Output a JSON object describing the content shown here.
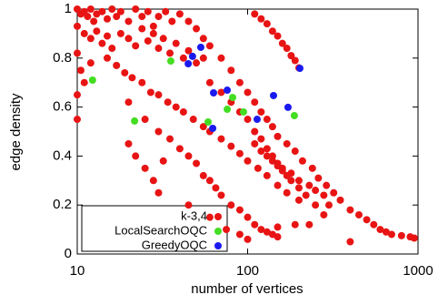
{
  "chart_data": {
    "type": "scatter",
    "xlabel": "number of vertices",
    "ylabel": "edge density",
    "log_x": true,
    "xlim": [
      10,
      1000
    ],
    "ylim": [
      0,
      1
    ],
    "xticks": [
      10,
      100,
      1000
    ],
    "yticks": [
      0,
      0.2,
      0.4,
      0.6,
      0.8,
      1
    ],
    "legend": "lower left",
    "series": [
      {
        "name": "k-3,4",
        "color": "#e81414",
        "x": [
          110,
          120,
          130,
          140,
          150,
          160,
          170,
          180,
          190,
          200,
          10,
          10.5,
          11,
          11.5,
          12,
          12.5,
          13,
          14,
          15,
          16,
          17,
          18,
          20,
          22,
          24,
          26,
          28,
          30,
          33,
          36,
          40,
          10,
          11,
          12,
          13,
          14,
          15,
          16,
          18,
          20,
          22,
          24,
          26,
          28,
          30,
          32,
          35,
          38,
          42,
          45,
          50,
          55,
          10,
          10,
          10.5,
          11,
          10,
          12,
          15,
          17,
          19,
          21,
          24,
          27,
          30,
          34,
          38,
          42,
          48,
          55,
          60,
          70,
          80,
          90,
          100,
          115,
          130,
          150,
          170,
          200,
          20,
          25,
          30,
          35,
          40,
          45,
          50,
          55,
          60,
          65,
          70,
          80,
          90,
          100,
          110,
          120,
          130,
          140,
          150,
          20,
          22,
          25,
          28,
          30,
          32,
          45,
          60,
          75,
          90,
          100,
          150,
          190,
          230,
          45,
          50,
          55,
          60,
          70,
          80,
          90,
          100,
          110,
          120,
          130,
          140,
          150,
          170,
          190,
          210,
          240,
          260,
          290,
          320,
          350,
          400,
          450,
          500,
          550,
          600,
          650,
          700,
          800,
          900,
          950,
          400,
          60,
          70,
          80,
          90,
          100,
          110,
          120,
          130,
          140,
          150,
          160,
          170,
          180,
          200,
          220,
          250,
          280,
          110,
          120,
          130,
          140,
          150,
          160,
          180,
          200,
          230,
          250,
          280,
          300
        ],
        "values": [
          0.98,
          0.96,
          0.94,
          0.91,
          0.89,
          0.86,
          0.84,
          0.81,
          0.79,
          0.76,
          1,
          0.98,
          0.99,
          0.97,
          1,
          0.95,
          0.98,
          0.99,
          0.96,
          1,
          0.97,
          0.99,
          0.95,
          1,
          0.97,
          0.99,
          0.93,
          0.97,
          0.99,
          0.95,
          0.98,
          0.93,
          0.9,
          0.88,
          0.91,
          0.86,
          0.89,
          0.84,
          0.9,
          0.88,
          0.85,
          0.92,
          0.87,
          0.9,
          0.84,
          0.88,
          0.82,
          0.86,
          0.8,
          0.83,
          0.78,
          0.8,
          0.55,
          0.65,
          0.75,
          0.7,
          0.82,
          0.78,
          0.8,
          0.77,
          0.74,
          0.72,
          0.7,
          0.66,
          0.65,
          0.62,
          0.6,
          0.58,
          0.55,
          0.52,
          0.5,
          0.47,
          0.44,
          0.41,
          0.38,
          0.35,
          0.32,
          0.28,
          0.25,
          0.22,
          0.62,
          0.55,
          0.5,
          0.47,
          0.43,
          0.4,
          0.37,
          0.32,
          0.3,
          0.27,
          0.24,
          0.2,
          0.18,
          0.15,
          0.12,
          0.1,
          0.09,
          0.08,
          0.07,
          0.45,
          0.4,
          0.35,
          0.3,
          0.25,
          0.38,
          0.2,
          0.15,
          0.1,
          0.08,
          0.06,
          0.11,
          0.12,
          0.12,
          0.95,
          0.92,
          0.88,
          0.85,
          0.8,
          0.75,
          0.7,
          0.66,
          0.62,
          0.58,
          0.55,
          0.52,
          0.48,
          0.45,
          0.42,
          0.38,
          0.35,
          0.31,
          0.28,
          0.25,
          0.22,
          0.18,
          0.16,
          0.14,
          0.12,
          0.1,
          0.09,
          0.08,
          0.075,
          0.07,
          0.065,
          0.05,
          0.7,
          0.66,
          0.62,
          0.58,
          0.55,
          0.5,
          0.47,
          0.43,
          0.4,
          0.37,
          0.35,
          0.32,
          0.3,
          0.27,
          0.24,
          0.2,
          0.16,
          0.45,
          0.42,
          0.4,
          0.38,
          0.36,
          0.34,
          0.33,
          0.3,
          0.28,
          0.26,
          0.24,
          0.2
        ]
      },
      {
        "name": "LocalSearchOQC",
        "color": "#44dd22",
        "x": [
          12.3,
          21.7,
          35.4,
          58.6,
          75.9,
          81.7,
          94.6,
          188
        ],
        "values": [
          0.71,
          0.543,
          0.788,
          0.539,
          0.591,
          0.639,
          0.58,
          0.565
        ]
      },
      {
        "name": "GreedyOQC",
        "color": "#1a1aee",
        "x": [
          53.1,
          44.8,
          47.5,
          63.1,
          75.9,
          62.4,
          113.7,
          141.9,
          172.6,
          202.6
        ],
        "values": [
          0.844,
          0.777,
          0.807,
          0.658,
          0.669,
          0.513,
          0.55,
          0.647,
          0.599,
          0.758
        ]
      }
    ]
  }
}
